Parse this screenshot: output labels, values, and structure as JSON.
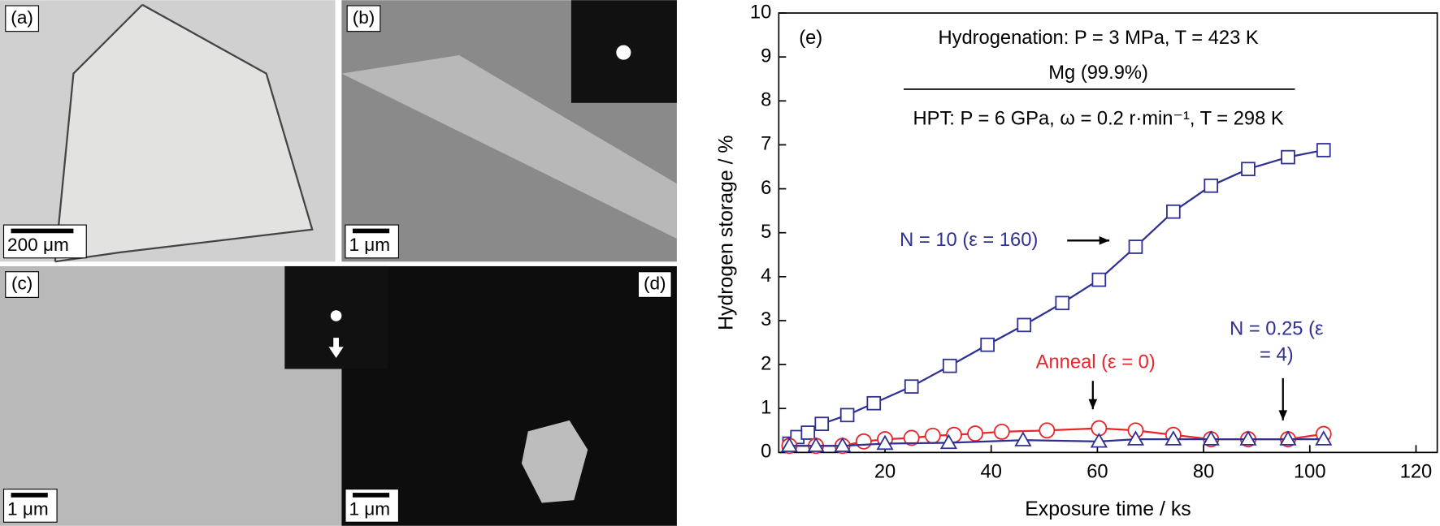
{
  "panels": [
    {
      "label": "(a)",
      "scale_bar": "200 μm"
    },
    {
      "label": "(b)",
      "scale_bar": "1 μm"
    },
    {
      "label": "(c)",
      "scale_bar": "1 μm"
    },
    {
      "label": "(d)",
      "scale_bar": "1 μm"
    }
  ],
  "chart_data": {
    "type": "line",
    "panel_label": "(e)",
    "annotations": [
      "Hydrogenation: P = 3 MPa, T = 423 K",
      "Mg (99.9%)",
      "HPT: P = 6 GPa, ω = 0.2 r·min⁻¹, T = 298 K"
    ],
    "xlabel": "Exposure time / ks",
    "ylabel": "Hydrogen storage / %",
    "xlim": [
      0,
      124
    ],
    "ylim": [
      0,
      10
    ],
    "xticks": [
      20,
      40,
      60,
      80,
      100,
      120
    ],
    "yticks": [
      0,
      1,
      2,
      3,
      4,
      5,
      6,
      7,
      8,
      9,
      10
    ],
    "series": [
      {
        "name": "N = 10 (ε = 160)",
        "color": "#2e3192",
        "marker": "square",
        "x": [
          2,
          3.5,
          5.5,
          8.1,
          12.9,
          17.9,
          25,
          32.2,
          39.3,
          46.2,
          53.4,
          60.3,
          67.2,
          74.3,
          81.4,
          88.4,
          95.9,
          102.6
        ],
        "values": [
          0.2,
          0.35,
          0.45,
          0.65,
          0.85,
          1.12,
          1.5,
          1.97,
          2.45,
          2.9,
          3.4,
          3.93,
          4.68,
          5.48,
          6.07,
          6.45,
          6.72,
          6.88
        ]
      },
      {
        "name": "Anneal (ε = 0)",
        "color": "#e8262b",
        "marker": "circle",
        "x": [
          2,
          7,
          12,
          16,
          20,
          25,
          29,
          33,
          37,
          42,
          50.5,
          60.3,
          67.2,
          74.3,
          81.4,
          88.4,
          95.9,
          102.6
        ],
        "values": [
          0.15,
          0.15,
          0.15,
          0.25,
          0.3,
          0.33,
          0.38,
          0.4,
          0.43,
          0.47,
          0.5,
          0.55,
          0.5,
          0.4,
          0.3,
          0.3,
          0.3,
          0.42
        ]
      },
      {
        "name": "N = 0.25 (ε = 4)",
        "color": "#2e3192",
        "marker": "triangle",
        "x": [
          2,
          7,
          12,
          20,
          32,
          46,
          60.3,
          67.2,
          74.3,
          81.4,
          88.4,
          95.9,
          102.6
        ],
        "values": [
          0.15,
          0.15,
          0.15,
          0.2,
          0.22,
          0.28,
          0.25,
          0.3,
          0.3,
          0.3,
          0.3,
          0.3,
          0.3
        ]
      }
    ]
  }
}
